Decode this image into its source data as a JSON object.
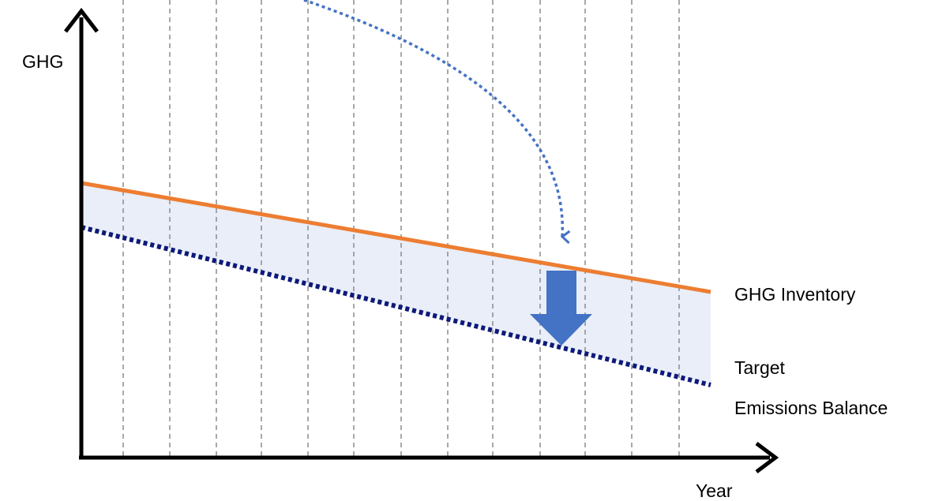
{
  "axes": {
    "y_label": "GHG",
    "x_label": "Year"
  },
  "lines": {
    "inventory": {
      "label": "GHG Inventory",
      "color": "#ED7D31",
      "style": "solid"
    },
    "target": {
      "label_line1": "Target",
      "label_line2": "Emissions Balance",
      "color": "#0D1A7A",
      "style": "dotted"
    }
  },
  "band": {
    "color": "#E9EEF8"
  },
  "annotations": {
    "reduction_arrow_color": "#4472C4",
    "curved_pointer_color": "#4472C4",
    "gridlines": {
      "style": "dashed",
      "color": "#8C8C8C",
      "count": 13
    }
  }
}
